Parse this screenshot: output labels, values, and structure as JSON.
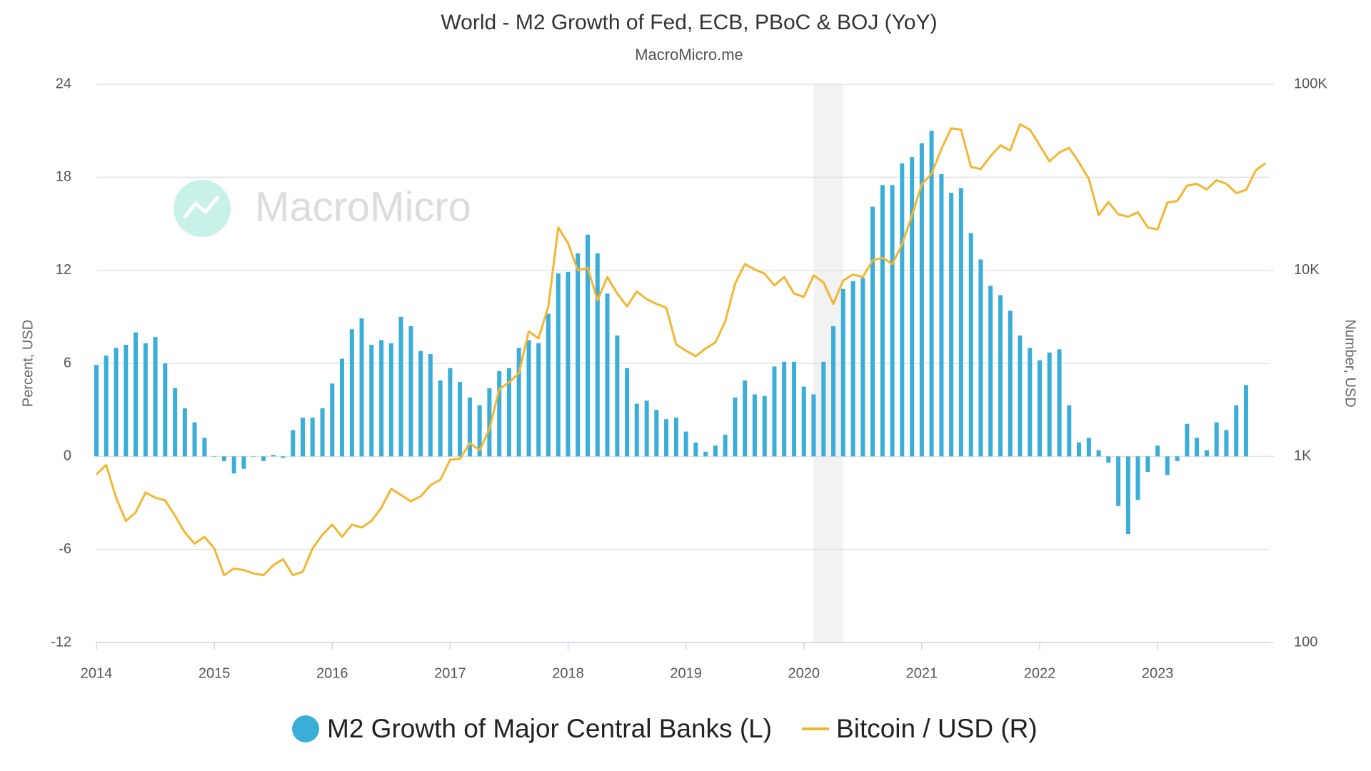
{
  "chart_data": {
    "type": "bar-line",
    "title": "World - M2 Growth of Fed, ECB, PBoC & BOJ (YoY)",
    "subtitle": "MacroMicro.me",
    "watermark": "MacroMicro",
    "y_label": "Percent, USD",
    "y2_label": "Number, USD",
    "xlim": [
      2014,
      2023.95
    ],
    "xticks": [
      2014,
      2015,
      2016,
      2017,
      2018,
      2019,
      2020,
      2021,
      2022,
      2023
    ],
    "ylim": [
      -12,
      24
    ],
    "yticks": [
      -12,
      -6,
      0,
      6,
      12,
      18,
      24
    ],
    "y2lim": [
      100,
      100000
    ],
    "y2ticks": [
      100,
      {
        "value": 1000,
        "label": "1K"
      },
      {
        "value": 10000,
        "label": "10K"
      },
      {
        "value": 100000,
        "label": "100K"
      }
    ],
    "y2log": true,
    "grid": true,
    "highlight": [
      2020.083,
      2020.333
    ],
    "legend": "bottom",
    "x": [
      2014,
      2014.083,
      2014.167,
      2014.25,
      2014.333,
      2014.417,
      2014.5,
      2014.583,
      2014.667,
      2014.75,
      2014.833,
      2014.917,
      2015,
      2015.083,
      2015.167,
      2015.25,
      2015.333,
      2015.417,
      2015.5,
      2015.583,
      2015.667,
      2015.75,
      2015.833,
      2015.917,
      2016,
      2016.083,
      2016.167,
      2016.25,
      2016.333,
      2016.417,
      2016.5,
      2016.583,
      2016.667,
      2016.75,
      2016.833,
      2016.917,
      2017,
      2017.083,
      2017.167,
      2017.25,
      2017.333,
      2017.417,
      2017.5,
      2017.583,
      2017.667,
      2017.75,
      2017.833,
      2017.917,
      2018,
      2018.083,
      2018.167,
      2018.25,
      2018.333,
      2018.417,
      2018.5,
      2018.583,
      2018.667,
      2018.75,
      2018.833,
      2018.917,
      2019,
      2019.083,
      2019.167,
      2019.25,
      2019.333,
      2019.417,
      2019.5,
      2019.583,
      2019.667,
      2019.75,
      2019.833,
      2019.917,
      2020,
      2020.083,
      2020.167,
      2020.25,
      2020.333,
      2020.417,
      2020.5,
      2020.583,
      2020.667,
      2020.75,
      2020.833,
      2020.917,
      2021,
      2021.083,
      2021.167,
      2021.25,
      2021.333,
      2021.417,
      2021.5,
      2021.583,
      2021.667,
      2021.75,
      2021.833,
      2021.917,
      2022,
      2022.083,
      2022.167,
      2022.25,
      2022.333,
      2022.417,
      2022.5,
      2022.583,
      2022.667,
      2022.75,
      2022.833,
      2022.917,
      2023,
      2023.083,
      2023.167,
      2023.25,
      2023.333,
      2023.417,
      2023.5,
      2023.583,
      2023.667,
      2023.75,
      2023.833,
      2023.917
    ],
    "series": [
      {
        "name": "M2 Growth of Major Central Banks (L)",
        "type": "bar",
        "color": "#3aaed8",
        "values": [
          5.9,
          6.5,
          7.0,
          7.2,
          8.0,
          7.3,
          7.7,
          6.0,
          4.4,
          3.1,
          2.2,
          1.2,
          0.0,
          -0.3,
          -1.1,
          -0.8,
          0.0,
          -0.3,
          0.1,
          -0.1,
          1.7,
          2.5,
          2.5,
          3.1,
          4.7,
          6.3,
          8.2,
          8.9,
          7.2,
          7.5,
          7.3,
          9.0,
          8.4,
          6.8,
          6.6,
          4.9,
          5.7,
          4.8,
          3.8,
          3.3,
          4.4,
          5.5,
          5.7,
          7.0,
          7.5,
          7.3,
          9.2,
          11.8,
          11.9,
          13.1,
          14.3,
          13.1,
          10.5,
          7.8,
          5.7,
          3.4,
          3.6,
          3.0,
          2.4,
          2.5,
          1.6,
          0.9,
          0.3,
          0.7,
          1.4,
          3.8,
          4.9,
          4.0,
          3.9,
          5.8,
          6.1,
          6.1,
          4.5,
          4.0,
          6.1,
          8.4,
          10.8,
          11.3,
          11.5,
          16.1,
          17.5,
          17.5,
          18.9,
          19.3,
          20.2,
          21.0,
          18.2,
          17.0,
          17.3,
          14.4,
          12.7,
          11.0,
          10.4,
          9.4,
          7.8,
          7.0,
          6.2,
          6.7,
          6.9,
          3.3,
          0.9,
          1.2,
          0.4,
          -0.4,
          -3.2,
          -5.0,
          -2.8,
          -1.0,
          0.7,
          -1.2,
          -0.3,
          2.1,
          1.2,
          0.4,
          2.2,
          1.7,
          3.3,
          4.6,
          null,
          null
        ]
      },
      {
        "name": "Bitcoin / USD (R)",
        "type": "line",
        "axis": "y2",
        "color": "#f2b632",
        "values": [
          800,
          900,
          600,
          450,
          500,
          640,
          600,
          580,
          480,
          390,
          340,
          370,
          320,
          230,
          250,
          245,
          235,
          230,
          260,
          280,
          230,
          240,
          320,
          380,
          430,
          370,
          430,
          415,
          450,
          530,
          670,
          620,
          575,
          610,
          700,
          750,
          960,
          970,
          1180,
          1080,
          1400,
          2300,
          2500,
          2800,
          4700,
          4300,
          6400,
          17000,
          14000,
          10000,
          10300,
          6900,
          9200,
          7500,
          6400,
          7700,
          7000,
          6600,
          6300,
          4000,
          3700,
          3450,
          3800,
          4100,
          5300,
          8500,
          10800,
          10100,
          9600,
          8300,
          9200,
          7500,
          7200,
          9400,
          8600,
          6600,
          8800,
          9500,
          9200,
          11300,
          11700,
          10800,
          13800,
          19700,
          29000,
          33000,
          45000,
          58000,
          57000,
          36000,
          35000,
          41000,
          47000,
          44000,
          61000,
          57000,
          47000,
          38500,
          43000,
          45500,
          38000,
          31000,
          19800,
          23300,
          20000,
          19400,
          20500,
          17000,
          16600,
          23100,
          23600,
          28500,
          29200,
          27200,
          30500,
          29200,
          26000,
          27000,
          34500,
          37700
        ]
      }
    ]
  }
}
